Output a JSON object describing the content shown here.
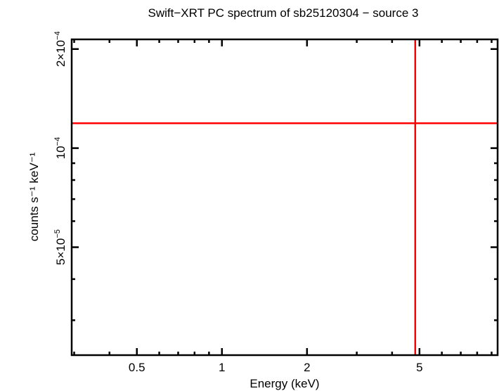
{
  "chart_data": {
    "type": "line",
    "title": "Swift−XRT PC spectrum of sb25120304 − source 3",
    "xlabel": "Energy (keV)",
    "ylabel": "counts s⁻¹ keV⁻¹",
    "xscale": "log",
    "yscale": "log",
    "xlim": [
      0.294,
      9.45
    ],
    "ylim": [
      2.35e-05,
      0.000214
    ],
    "x_ticks": [
      {
        "value": 0.5,
        "label": "0.5"
      },
      {
        "value": 1,
        "label": "1"
      },
      {
        "value": 2,
        "label": "2"
      },
      {
        "value": 5,
        "label": "5"
      }
    ],
    "y_ticks": [
      {
        "value": 5e-05,
        "label_base": "5×10",
        "label_exp": "−5"
      },
      {
        "value": 0.0001,
        "label_base": "10",
        "label_exp": "−4"
      },
      {
        "value": 0.0002,
        "label_base": "2×10",
        "label_exp": "−4"
      }
    ],
    "x_minor_ticks": [
      0.3,
      0.4,
      0.6,
      0.7,
      0.8,
      0.9,
      3,
      4,
      6,
      7,
      8,
      9
    ],
    "y_minor_ticks": [
      3e-05,
      4e-05,
      6e-05,
      7e-05,
      8e-05,
      9e-05
    ],
    "grid": false,
    "legend": null,
    "series": [
      {
        "name": "horizontal-marker",
        "orientation": "horizontal",
        "value": 0.000119,
        "color": "#ff0000"
      },
      {
        "name": "vertical-marker",
        "orientation": "vertical",
        "value": 4.83,
        "color": "#ff0000"
      }
    ],
    "data_points": []
  },
  "colors": {
    "frame": "#000000",
    "marker": "#ff0000",
    "background": "#ffffff"
  }
}
